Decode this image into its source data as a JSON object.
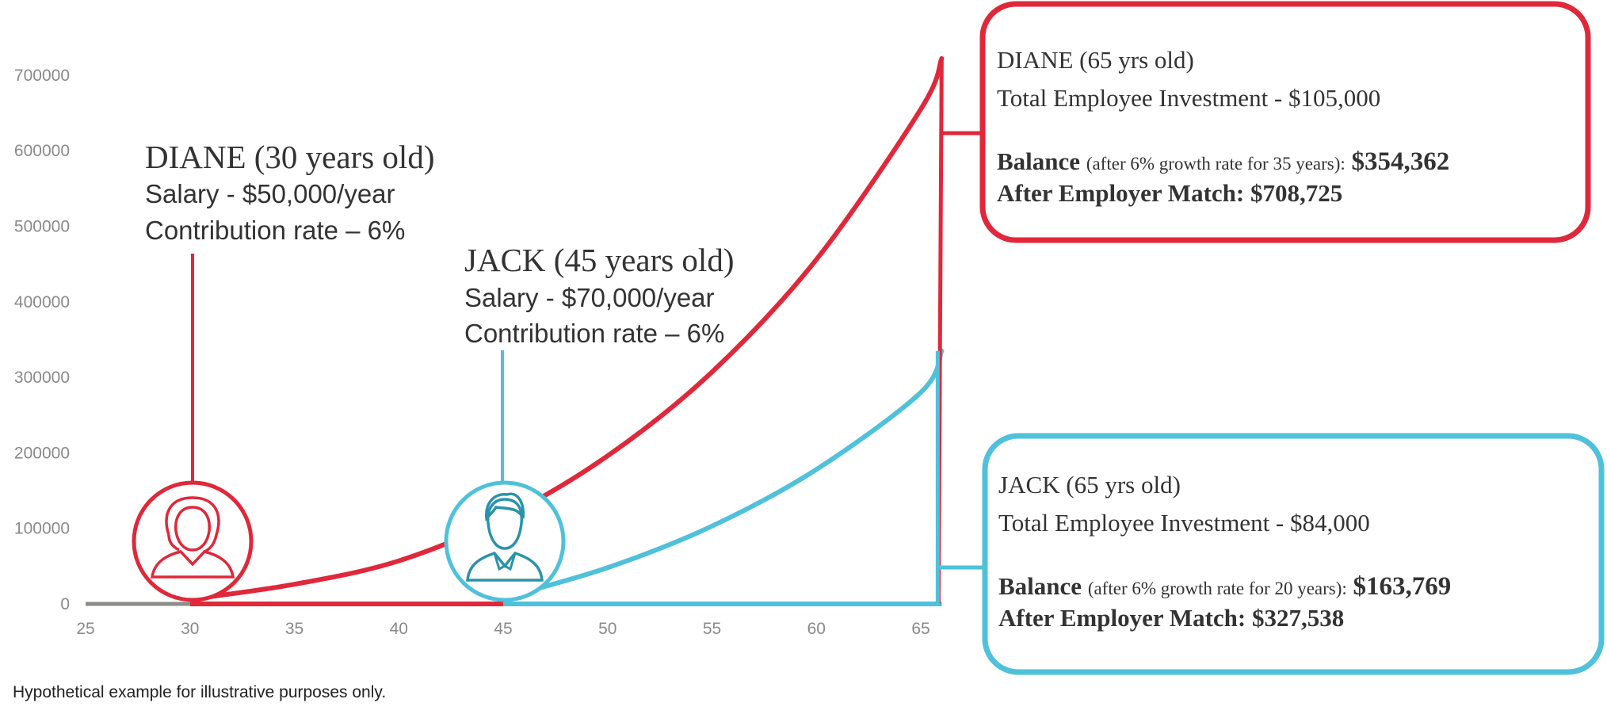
{
  "colors": {
    "diane": "#e0283a",
    "jack": "#4fc1da",
    "axis": "#8c8c88",
    "text": "#333333"
  },
  "chart_data": {
    "type": "line",
    "xlim": [
      25,
      66
    ],
    "ylim": [
      0,
      700000
    ],
    "x_ticks": [
      "25",
      "30",
      "35",
      "40",
      "45",
      "50",
      "55",
      "60",
      "65"
    ],
    "y_ticks": [
      "0",
      "100000",
      "200000",
      "300000",
      "400000",
      "500000",
      "600000",
      "700000"
    ],
    "series": [
      {
        "name": "DIANE",
        "x": [
          30,
          35,
          40,
          45,
          50,
          55,
          60,
          65,
          66
        ],
        "y": [
          6000,
          26000,
          57000,
          114000,
          196000,
          307000,
          456000,
          655000,
          722000
        ]
      },
      {
        "name": "JACK",
        "x": [
          45,
          50,
          55,
          60,
          65,
          66
        ],
        "y": [
          8000,
          48000,
          103000,
          178000,
          280000,
          335000
        ]
      }
    ],
    "annotations": {
      "diane_start": {
        "title": "DIANE (30 years old)",
        "salary": "Salary - $50,000/year",
        "contribution": "Contribution rate – 6%"
      },
      "jack_start": {
        "title": "JACK (45 years old)",
        "salary": "Salary - $70,000/year",
        "contribution": "Contribution rate – 6%"
      }
    },
    "result_boxes": {
      "diane": {
        "title": "DIANE (65 yrs old)",
        "investment": "Total Employee Investment - $105,000",
        "balance_label": "Balance",
        "balance_note": "(after 6% growth rate for 35 years):",
        "balance_value": "$354,362",
        "match": "After Employer Match: $708,725"
      },
      "jack": {
        "title": "JACK (65 yrs old)",
        "investment": "Total Employee Investment - $84,000",
        "balance_label": "Balance",
        "balance_note": "(after 6% growth rate for 20 years):",
        "balance_value": "$163,769",
        "match": "After Employer Match: $327,538"
      }
    }
  },
  "footnote": "Hypothetical example for illustrative purposes only.",
  "icons": {
    "diane": "female-avatar-icon",
    "jack": "male-avatar-icon"
  }
}
